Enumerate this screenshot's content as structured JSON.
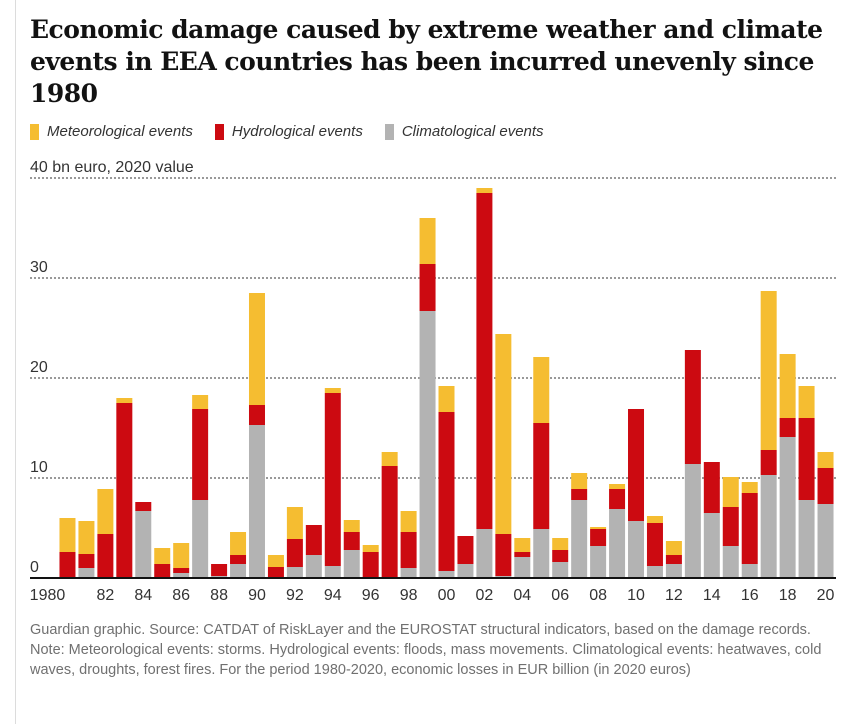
{
  "chart_data": {
    "type": "bar",
    "stacked": true,
    "title": "Economic damage caused by extreme weather and climate events in EEA countries has been incurred unevenly since 1980",
    "ylabel": "bn euro, 2020 value",
    "ylim": [
      0,
      40
    ],
    "yticks": [
      0,
      10,
      20,
      30,
      40
    ],
    "ytick_labels": [
      "0",
      "10",
      "20",
      "30",
      "40 bn euro, 2020 value"
    ],
    "grid": true,
    "legend_position": "top-left",
    "categories": [
      1980,
      1981,
      1982,
      1983,
      1984,
      1985,
      1986,
      1987,
      1988,
      1989,
      1990,
      1991,
      1992,
      1993,
      1994,
      1995,
      1996,
      1997,
      1998,
      1999,
      2000,
      2001,
      2002,
      2003,
      2004,
      2005,
      2006,
      2007,
      2008,
      2009,
      2010,
      2011,
      2012,
      2013,
      2014,
      2015,
      2016,
      2017,
      2018,
      2019,
      2020
    ],
    "xtick_labels": [
      "1980",
      "82",
      "84",
      "86",
      "88",
      "90",
      "92",
      "94",
      "96",
      "98",
      "00",
      "02",
      "04",
      "06",
      "08",
      "10",
      "12",
      "14",
      "16",
      "18",
      "20"
    ],
    "series": [
      {
        "name": "Climatological events",
        "color": "#b3b3b3",
        "values": [
          0,
          1.0,
          0,
          0,
          6.7,
          0,
          0.5,
          7.8,
          0.2,
          1.4,
          15.3,
          0,
          1.1,
          2.3,
          1.2,
          2.8,
          0.1,
          0.1,
          1.0,
          26.7,
          0.7,
          1.4,
          4.9,
          0.2,
          2.1,
          4.9,
          1.6,
          7.8,
          3.2,
          6.9,
          5.7,
          1.2,
          1.4,
          11.4,
          6.5,
          3.2,
          1.4,
          10.3,
          14.1,
          7.8,
          7.4
        ]
      },
      {
        "name": "Hydrological events",
        "color": "#cc0a11",
        "values": [
          2.6,
          1.4,
          4.4,
          17.5,
          0.9,
          1.4,
          0.5,
          9.1,
          1.2,
          0.9,
          2.0,
          1.1,
          2.8,
          3.0,
          17.3,
          1.8,
          2.5,
          11.1,
          3.6,
          4.7,
          15.9,
          2.8,
          33.6,
          4.2,
          0.5,
          10.6,
          1.2,
          1.1,
          1.7,
          2.0,
          11.2,
          4.3,
          0.9,
          11.4,
          5.1,
          3.9,
          7.1,
          2.5,
          1.9,
          8.2,
          3.6
        ]
      },
      {
        "name": "Meteorological events",
        "color": "#f5bd31",
        "values": [
          3.4,
          3.3,
          4.5,
          0.5,
          0,
          1.6,
          2.5,
          1.4,
          0,
          2.3,
          11.2,
          1.2,
          3.2,
          0,
          0.5,
          1.2,
          0.7,
          1.4,
          2.1,
          4.6,
          2.6,
          0,
          0.5,
          20.0,
          1.4,
          6.6,
          1.2,
          1.6,
          0.2,
          0.5,
          0,
          0.7,
          1.4,
          0,
          0,
          3.0,
          1.1,
          15.9,
          6.4,
          3.2,
          1.6
        ]
      }
    ],
    "legend": [
      "Meteorological events",
      "Hydrological events",
      "Climatological events"
    ]
  },
  "footer": "Guardian graphic. Source: CATDAT of RiskLayer and the EUROSTAT structural indicators, based on the damage records. Note: Meteorological events: storms. Hydrological events: floods, mass movements. Climatological events: heatwaves, cold waves, droughts, forest fires. For the period 1980-2020, economic losses in EUR billion (in 2020 euros)"
}
